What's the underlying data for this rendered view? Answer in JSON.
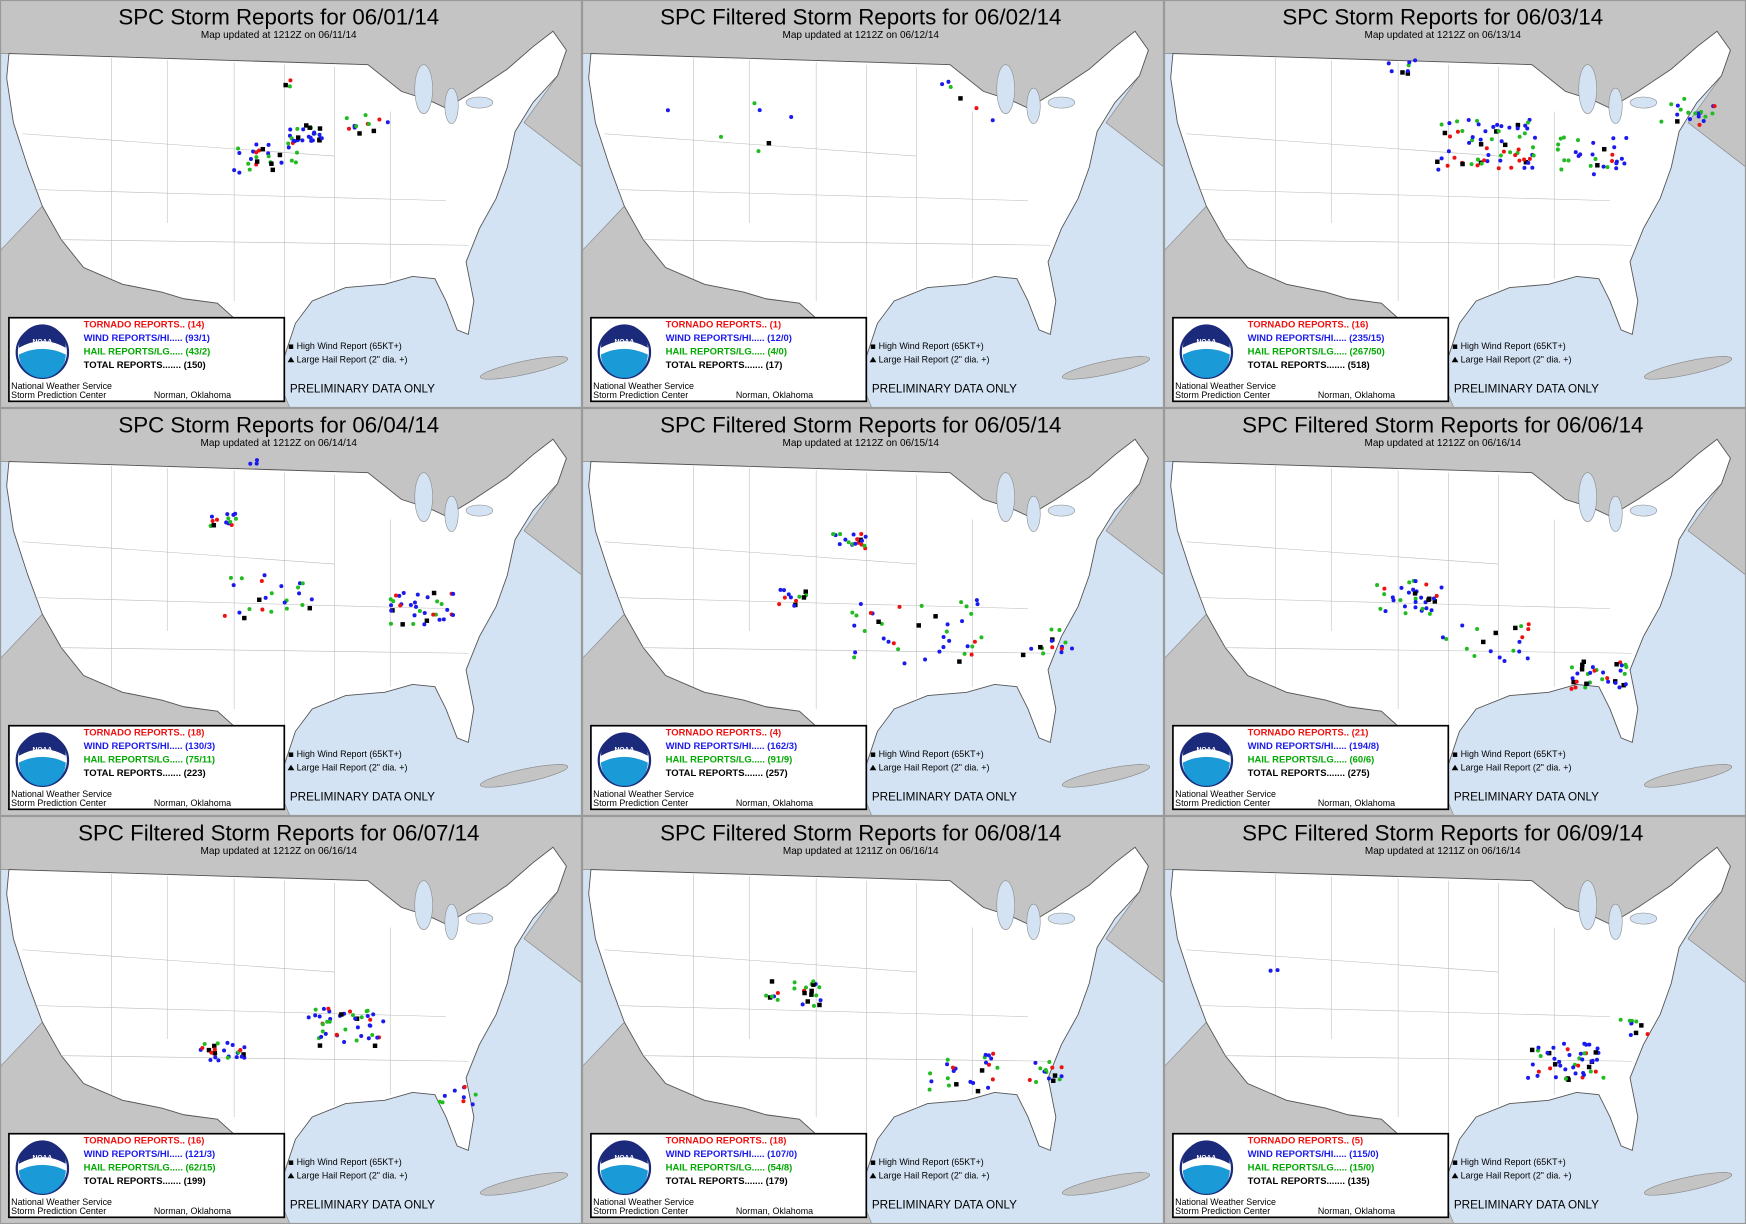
{
  "panels": [
    {
      "title": "SPC Storm Reports for 06/01/14",
      "updated": "Map updated at 1212Z on 06/11/14",
      "tornado": "TORNADO REPORTS.. (14)",
      "wind": "WIND REPORTS/HI..... (93/1)",
      "hail": "HAIL REPORTS/LG..... (43/2)",
      "total": "TOTAL REPORTS....... (150)"
    },
    {
      "title": "SPC Filtered Storm Reports for 06/02/14",
      "updated": "Map updated at 1212Z on 06/12/14",
      "tornado": "TORNADO REPORTS.. (1)",
      "wind": "WIND REPORTS/HI..... (12/0)",
      "hail": "HAIL REPORTS/LG..... (4/0)",
      "total": "TOTAL REPORTS....... (17)"
    },
    {
      "title": "SPC Storm Reports for 06/03/14",
      "updated": "Map updated at 1212Z on 06/13/14",
      "tornado": "TORNADO REPORTS.. (16)",
      "wind": "WIND REPORTS/HI..... (235/15)",
      "hail": "HAIL REPORTS/LG..... (267/50)",
      "total": "TOTAL REPORTS....... (518)"
    },
    {
      "title": "SPC Storm Reports for 06/04/14",
      "updated": "Map updated at 1212Z on 06/14/14",
      "tornado": "TORNADO REPORTS.. (18)",
      "wind": "WIND REPORTS/HI..... (130/3)",
      "hail": "HAIL REPORTS/LG..... (75/11)",
      "total": "TOTAL REPORTS....... (223)"
    },
    {
      "title": "SPC Filtered Storm Reports for 06/05/14",
      "updated": "Map updated at 1212Z on 06/15/14",
      "tornado": "TORNADO REPORTS.. (4)",
      "wind": "WIND REPORTS/HI..... (162/3)",
      "hail": "HAIL REPORTS/LG..... (91/9)",
      "total": "TOTAL REPORTS....... (257)"
    },
    {
      "title": "SPC Filtered Storm Reports for 06/06/14",
      "updated": "Map updated at 1212Z on 06/16/14",
      "tornado": "TORNADO REPORTS.. (21)",
      "wind": "WIND REPORTS/HI..... (194/8)",
      "hail": "HAIL REPORTS/LG..... (60/6)",
      "total": "TOTAL REPORTS....... (275)"
    },
    {
      "title": "SPC Filtered Storm Reports for 06/07/14",
      "updated": "Map updated at 1212Z on 06/16/14",
      "tornado": "TORNADO REPORTS.. (16)",
      "wind": "WIND REPORTS/HI..... (121/3)",
      "hail": "HAIL REPORTS/LG..... (62/15)",
      "total": "TOTAL REPORTS....... (199)"
    },
    {
      "title": "SPC Filtered Storm Reports for 06/08/14",
      "updated": "Map updated at 1211Z on 06/16/14",
      "tornado": "TORNADO REPORTS.. (18)",
      "wind": "WIND REPORTS/HI..... (107/0)",
      "hail": "HAIL REPORTS/LG..... (54/8)",
      "total": "TOTAL REPORTS....... (179)"
    },
    {
      "title": "SPC Filtered Storm Reports for 06/09/14",
      "updated": "Map updated at 1211Z on 06/16/14",
      "tornado": "TORNADO REPORTS.. (5)",
      "wind": "WIND REPORTS/HI..... (115/0)",
      "hail": "HAIL REPORTS/LG..... (15/0)",
      "total": "TOTAL REPORTS....... (135)"
    }
  ],
  "legend": {
    "high_wind": "High Wind Report (65KT+)",
    "large_hail": "Large Hail Report (2\" dia. +)",
    "preliminary": "PRELIMINARY DATA ONLY",
    "logo": "NOAA"
  },
  "footer": {
    "agency": "National Weather Service",
    "center": "Storm Prediction Center",
    "location": "Norman, Oklahoma"
  }
}
